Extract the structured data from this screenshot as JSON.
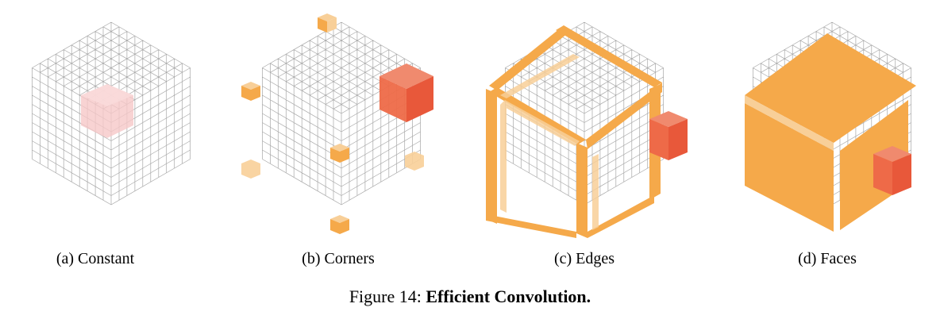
{
  "figure": {
    "prefix": "Figure 14:",
    "title": "Efficient Convolution."
  },
  "panels": [
    {
      "label": "(a) Constant",
      "mode": "constant"
    },
    {
      "label": "(b) Corners",
      "mode": "corners"
    },
    {
      "label": "(c) Edges",
      "mode": "edges"
    },
    {
      "label": "(d) Faces",
      "mode": "faces"
    }
  ],
  "colors": {
    "grid": "#8a8a8a",
    "orange": "#f5a94a",
    "orange_light": "#f8cf98",
    "red": "#e8583a",
    "pink": "#f6c8c8"
  }
}
